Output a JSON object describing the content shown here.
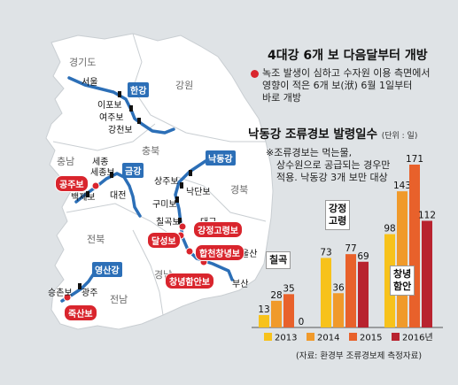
{
  "title": "4대강 6개 보 다음달부터 개방",
  "note": {
    "line1": "녹조 발생이 심하고 수자원 이용 측면에서",
    "line2": "영향이 적은 6개 보(洑) 6월 1일부터",
    "line3": "바로 개방"
  },
  "regions": {
    "gyeonggi": "경기도",
    "gangwon": "강원",
    "chungbuk": "충북",
    "chungnam": "충남",
    "gyeongbuk": "경북",
    "jeonbuk": "전북",
    "gyeongnam": "경남",
    "jeonnam": "전남"
  },
  "cities": {
    "seoul": "서울",
    "sejong": "세종",
    "daejeon": "대전",
    "daegu": "대구",
    "ulsan": "울산",
    "busan": "부산",
    "gwangju": "광주"
  },
  "rivers": {
    "han": "한강",
    "geum": "금강",
    "nakdong": "낙동강",
    "yeongsan": "영산강"
  },
  "weirs": {
    "ipo": "이포보",
    "yeoju": "여주보",
    "gangcheon": "강천보",
    "sejong": "세종보",
    "baekje": "백제보",
    "sangju": "상주보",
    "nakdan": "낙단보",
    "gumi": "구미보",
    "chilgok": "칠곡보",
    "seungchon": "승촌보",
    "gongju": "공주보",
    "dalseong": "달성보",
    "gangjeong": "강정고령보",
    "hapcheon": "합천창녕보",
    "changnyeong": "창녕함안보",
    "juksan": "죽산보"
  },
  "chart_data": {
    "type": "bar",
    "title": "낙동강 조류경보 발령일수",
    "unit": "(단위 : 일)",
    "note": {
      "line1": "※조류경보는 먹는물,",
      "line2": "상수원으로 공급되는 경우만",
      "line3": "적용. 낙동강 3개 보만 대상"
    },
    "categories": [
      "칠곡",
      "강정\n고령",
      "창녕\n함안"
    ],
    "category_labels": [
      {
        "line1": "칠곡",
        "line2": ""
      },
      {
        "line1": "강정",
        "line2": "고령"
      },
      {
        "line1": "창녕",
        "line2": "함안"
      }
    ],
    "series": [
      {
        "name": "2013",
        "color": "#f7c21b",
        "values": [
          13,
          73,
          98
        ]
      },
      {
        "name": "2014",
        "color": "#f09a2b",
        "values": [
          28,
          36,
          143
        ]
      },
      {
        "name": "2015",
        "color": "#e8612b",
        "values": [
          35,
          77,
          171
        ]
      },
      {
        "name": "2016년",
        "color": "#b8232f",
        "values": [
          0,
          69,
          112
        ]
      }
    ],
    "ylim": [
      0,
      171
    ],
    "source": "(자료: 환경부 조류경보제 측정자료)"
  },
  "colors": {
    "river": "#2c6fb7",
    "weir_open": "#d9252d",
    "weir_other": "#111111",
    "land": "#ffffff",
    "background": "#dfe3e6"
  }
}
